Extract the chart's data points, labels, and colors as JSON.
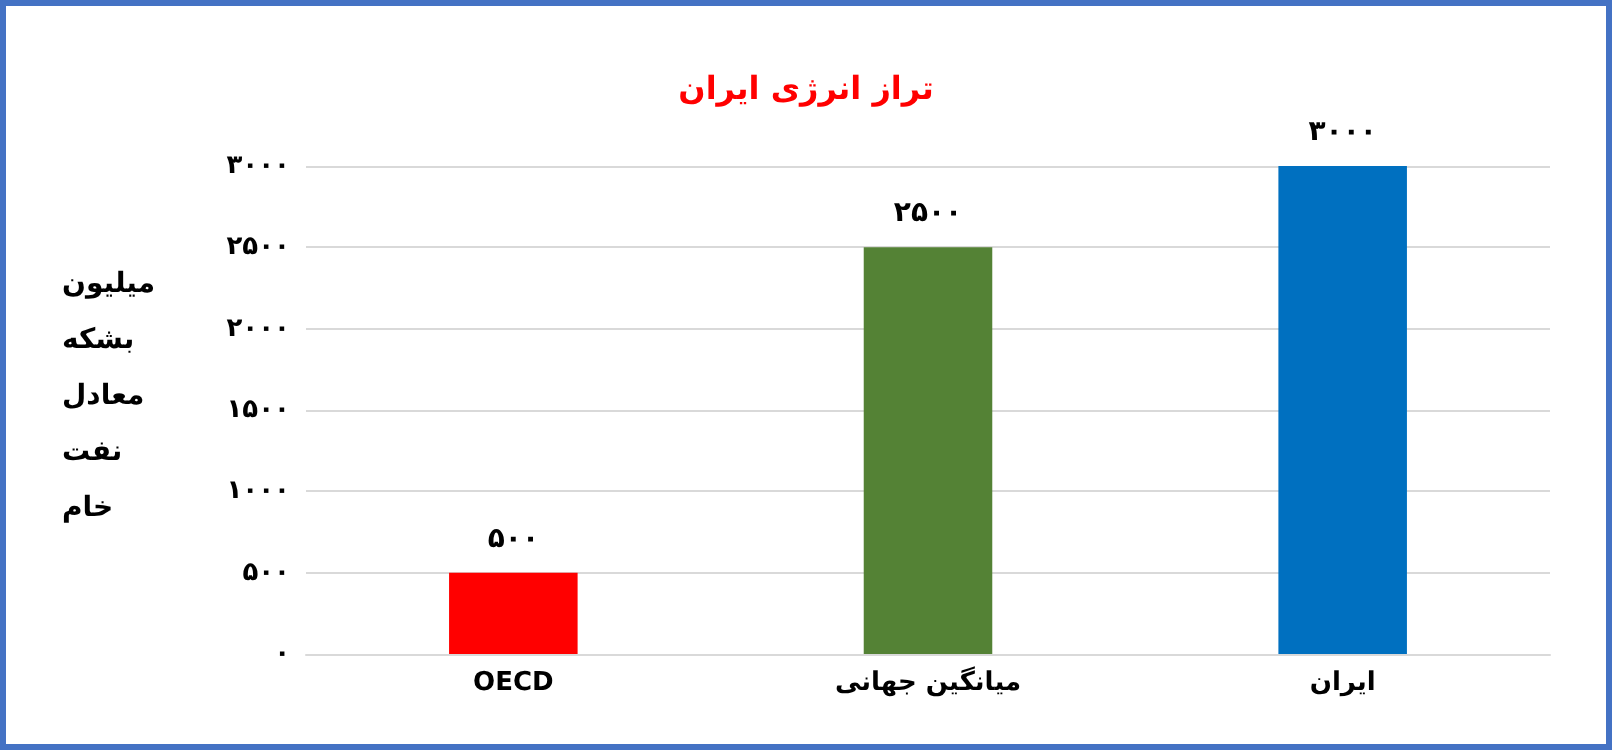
{
  "chart_data": {
    "type": "bar",
    "title": "تراز انرژی ایران",
    "ylabel": "میلیون بشکه معادل نفت خام",
    "categories": [
      "OECD",
      "میانگین جهانی",
      "ایران"
    ],
    "values": [
      500,
      2500,
      3000
    ],
    "colors": [
      "#ff0000",
      "#548235",
      "#0070c0"
    ],
    "value_labels": [
      "۵۰۰",
      "۲۵۰۰",
      "۳۰۰۰"
    ],
    "ylim": [
      0,
      3000
    ],
    "yticks": [
      {
        "value": 0,
        "label": "۰"
      },
      {
        "value": 500,
        "label": "۵۰۰"
      },
      {
        "value": 1000,
        "label": "۱۰۰۰"
      },
      {
        "value": 1500,
        "label": "۱۵۰۰"
      },
      {
        "value": 2000,
        "label": "۲۰۰۰"
      },
      {
        "value": 2500,
        "label": "۲۵۰۰"
      },
      {
        "value": 3000,
        "label": "۳۰۰۰"
      }
    ],
    "grid": "y"
  }
}
